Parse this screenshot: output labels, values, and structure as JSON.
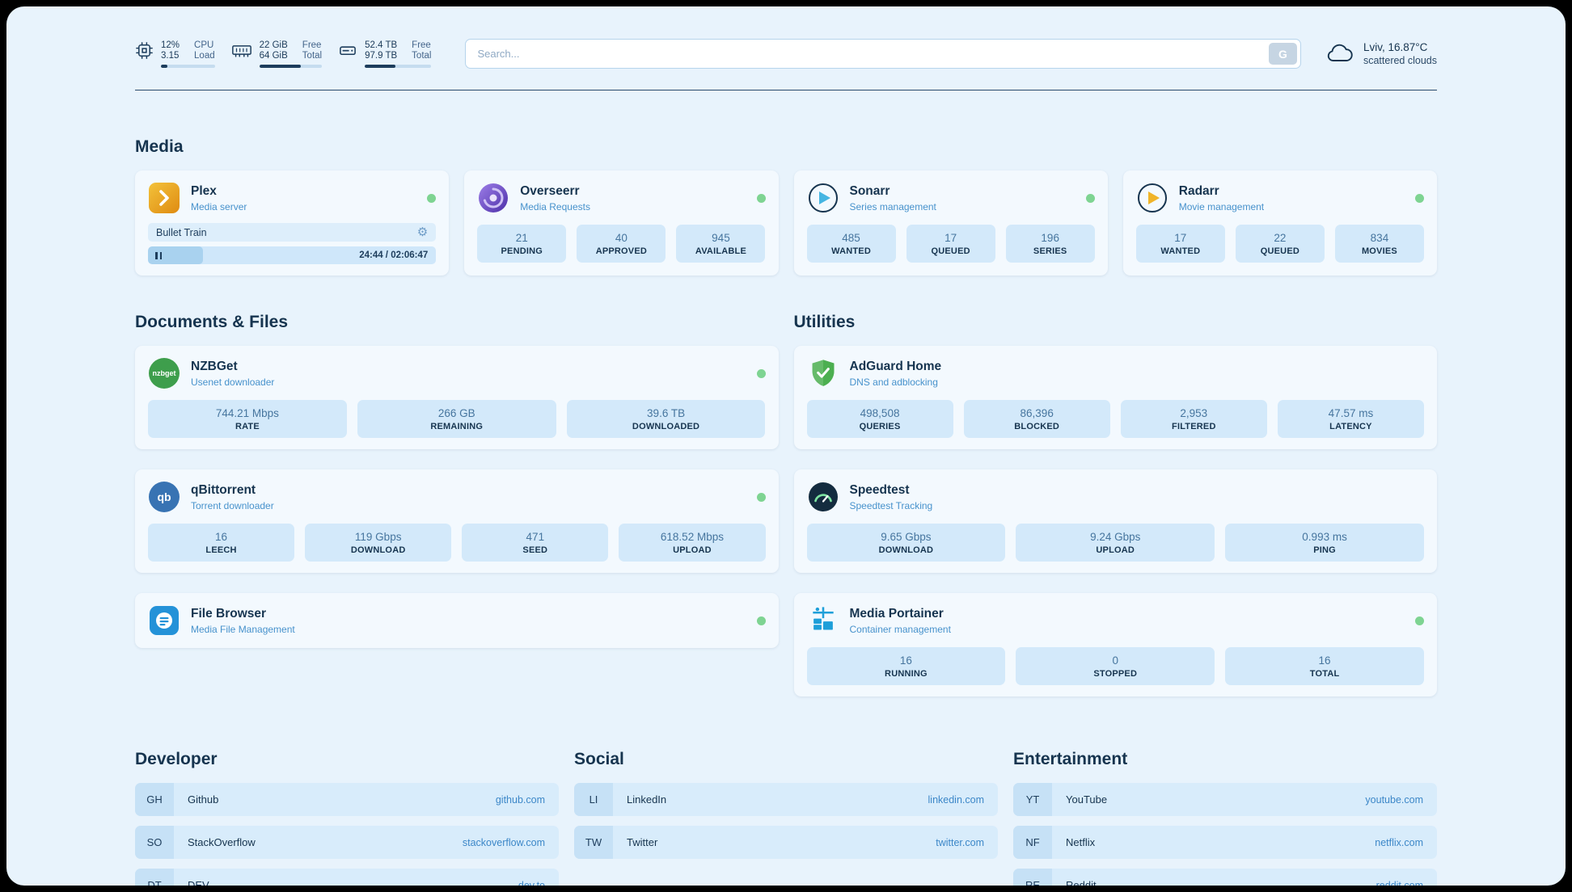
{
  "topbar": {
    "cpu": {
      "value1": "12%",
      "value2": "3.15",
      "label1": "CPU",
      "label2": "Load",
      "bar": "12%"
    },
    "memory": {
      "value1": "22 GiB",
      "value2": "64 GiB",
      "label1": "Free",
      "label2": "Total",
      "bar": "66%"
    },
    "disk": {
      "value1": "52.4 TB",
      "value2": "97.9 TB",
      "label1": "Free",
      "label2": "Total",
      "bar": "46%"
    },
    "search": {
      "placeholder": "Search...",
      "button_label": "G"
    },
    "weather": {
      "location": "Lviv, 16.87°C",
      "condition": "scattered clouds"
    }
  },
  "colors": {
    "accent_navy": "#1d3d5c",
    "accent_blue": "#3c87c8",
    "status_green": "#7ed492",
    "tile_bg": "#d3e9fa",
    "page_bg": "#e8f3fc"
  },
  "sections": {
    "media": {
      "heading": "Media",
      "plex": {
        "title": "Plex",
        "subtitle": "Media server",
        "track": "Bullet Train",
        "time": "24:44 / 02:06:47",
        "progress": "19%"
      },
      "overseerr": {
        "title": "Overseerr",
        "subtitle": "Media Requests",
        "stats": [
          {
            "value": "21",
            "label": "PENDING"
          },
          {
            "value": "40",
            "label": "APPROVED"
          },
          {
            "value": "945",
            "label": "AVAILABLE"
          }
        ]
      },
      "sonarr": {
        "title": "Sonarr",
        "subtitle": "Series management",
        "stats": [
          {
            "value": "485",
            "label": "WANTED"
          },
          {
            "value": "17",
            "label": "QUEUED"
          },
          {
            "value": "196",
            "label": "SERIES"
          }
        ]
      },
      "radarr": {
        "title": "Radarr",
        "subtitle": "Movie management",
        "stats": [
          {
            "value": "17",
            "label": "WANTED"
          },
          {
            "value": "22",
            "label": "QUEUED"
          },
          {
            "value": "834",
            "label": "MOVIES"
          }
        ]
      }
    },
    "documents": {
      "heading": "Documents & Files",
      "nzbget": {
        "title": "NZBGet",
        "subtitle": "Usenet downloader",
        "icon_text": "nzbget",
        "stats": [
          {
            "value": "744.21 Mbps",
            "label": "RATE"
          },
          {
            "value": "266 GB",
            "label": "REMAINING"
          },
          {
            "value": "39.6 TB",
            "label": "DOWNLOADED"
          }
        ]
      },
      "qbittorrent": {
        "title": "qBittorrent",
        "subtitle": "Torrent downloader",
        "icon_text": "qb",
        "stats": [
          {
            "value": "16",
            "label": "LEECH"
          },
          {
            "value": "119 Gbps",
            "label": "DOWNLOAD"
          },
          {
            "value": "471",
            "label": "SEED"
          },
          {
            "value": "618.52 Mbps",
            "label": "UPLOAD"
          }
        ]
      },
      "filebrowser": {
        "title": "File Browser",
        "subtitle": "Media File Management"
      }
    },
    "utilities": {
      "heading": "Utilities",
      "adguard": {
        "title": "AdGuard Home",
        "subtitle": "DNS and adblocking",
        "stats": [
          {
            "value": "498,508",
            "label": "QUERIES"
          },
          {
            "value": "86,396",
            "label": "BLOCKED"
          },
          {
            "value": "2,953",
            "label": "FILTERED"
          },
          {
            "value": "47.57 ms",
            "label": "LATENCY"
          }
        ]
      },
      "speedtest": {
        "title": "Speedtest",
        "subtitle": "Speedtest Tracking",
        "stats": [
          {
            "value": "9.65 Gbps",
            "label": "DOWNLOAD"
          },
          {
            "value": "9.24 Gbps",
            "label": "UPLOAD"
          },
          {
            "value": "0.993 ms",
            "label": "PING"
          }
        ]
      },
      "portainer": {
        "title": "Media Portainer",
        "subtitle": "Container management",
        "stats": [
          {
            "value": "16",
            "label": "RUNNING"
          },
          {
            "value": "0",
            "label": "STOPPED"
          },
          {
            "value": "16",
            "label": "TOTAL"
          }
        ]
      }
    }
  },
  "bookmarks": {
    "developer": {
      "heading": "Developer",
      "items": [
        {
          "abbr": "GH",
          "name": "Github",
          "url": "github.com"
        },
        {
          "abbr": "SO",
          "name": "StackOverflow",
          "url": "stackoverflow.com"
        },
        {
          "abbr": "DT",
          "name": "DEV",
          "url": "dev.to"
        }
      ]
    },
    "social": {
      "heading": "Social",
      "items": [
        {
          "abbr": "LI",
          "name": "LinkedIn",
          "url": "linkedin.com"
        },
        {
          "abbr": "TW",
          "name": "Twitter",
          "url": "twitter.com"
        }
      ]
    },
    "entertainment": {
      "heading": "Entertainment",
      "items": [
        {
          "abbr": "YT",
          "name": "YouTube",
          "url": "youtube.com"
        },
        {
          "abbr": "NF",
          "name": "Netflix",
          "url": "netflix.com"
        },
        {
          "abbr": "RE",
          "name": "Reddit",
          "url": "reddit.com"
        }
      ]
    }
  }
}
